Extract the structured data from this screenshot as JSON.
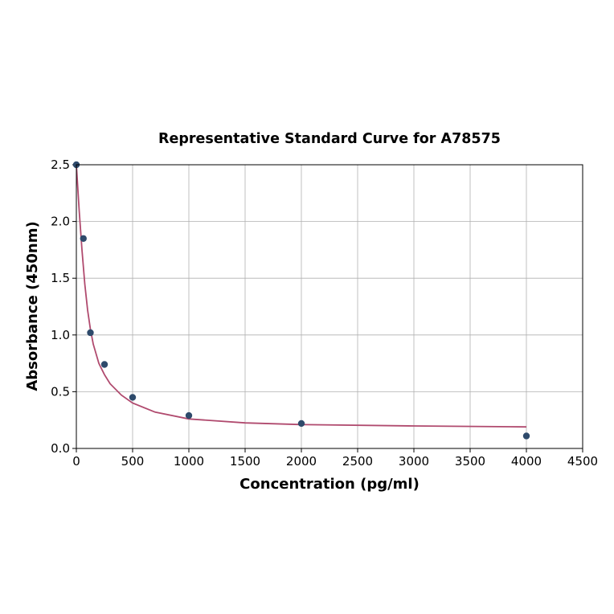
{
  "chart_data": {
    "type": "scatter",
    "title": "Representative Standard Curve for A78575",
    "xlabel": "Concentration (pg/ml)",
    "ylabel": "Absorbance (450nm)",
    "xlim": [
      0,
      4500
    ],
    "ylim": [
      0,
      2.5
    ],
    "xticks": [
      0,
      500,
      1000,
      1500,
      2000,
      2500,
      3000,
      3500,
      4000,
      4500
    ],
    "yticks": [
      "0.0",
      "0.5",
      "1.0",
      "1.5",
      "2.0",
      "2.5"
    ],
    "grid": true,
    "points": {
      "x": [
        0,
        62.5,
        125,
        250,
        500,
        1000,
        2000,
        4000
      ],
      "y": [
        2.5,
        1.85,
        1.02,
        0.74,
        0.45,
        0.29,
        0.22,
        0.11
      ],
      "color": "#2e4a6b"
    },
    "fit_curve": {
      "x": [
        0,
        25,
        50,
        75,
        100,
        125,
        150,
        200,
        250,
        300,
        400,
        500,
        700,
        1000,
        1500,
        2000,
        3000,
        4000
      ],
      "y": [
        2.5,
        2.1,
        1.75,
        1.45,
        1.22,
        1.05,
        0.92,
        0.75,
        0.65,
        0.57,
        0.47,
        0.4,
        0.32,
        0.26,
        0.225,
        0.21,
        0.198,
        0.19
      ],
      "color": "#b04a6e"
    }
  }
}
